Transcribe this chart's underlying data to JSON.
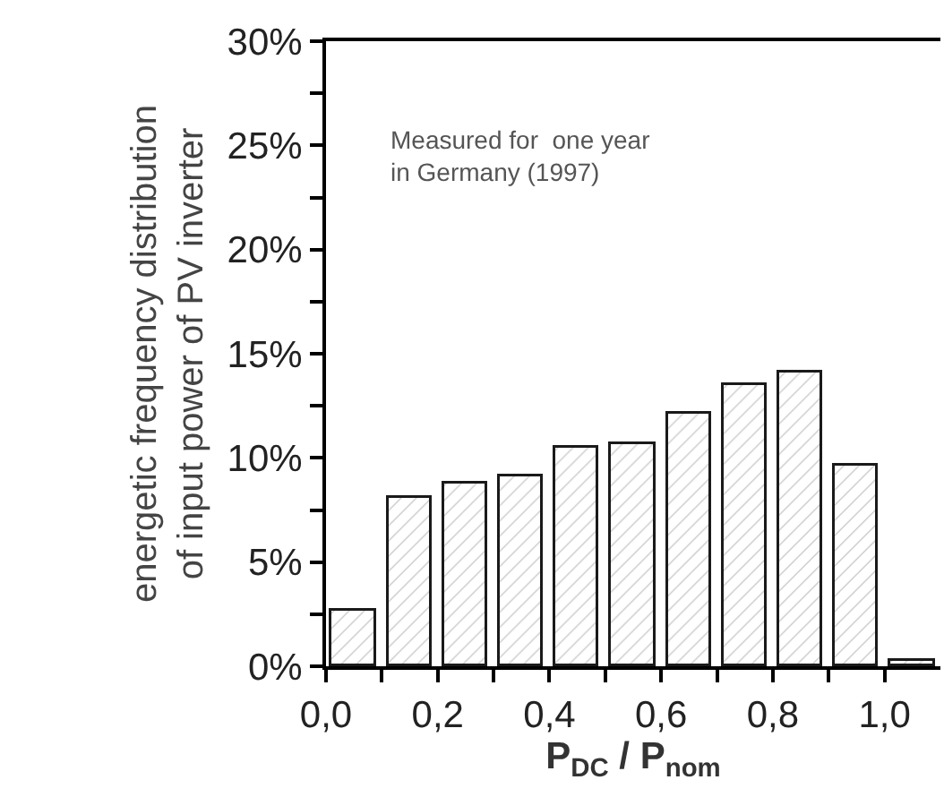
{
  "chart_data": {
    "type": "bar",
    "xlabel": "P$_{DC}$ / P$_{nom}$",
    "ylabel": "energetic frequency distribution\nof input power of PV inverter",
    "annotations": [
      "Measured for  one year\nin Germany (1997)"
    ],
    "x": [
      0.05,
      0.15,
      0.25,
      0.35,
      0.45,
      0.55,
      0.65,
      0.75,
      0.85,
      0.95,
      1.05
    ],
    "values": [
      2.7,
      8.1,
      8.8,
      9.1,
      10.5,
      10.7,
      12.1,
      13.5,
      14.1,
      9.6,
      0.3
    ],
    "color": "#1a1a1a",
    "xlim": [
      0,
      1.1
    ],
    "xticks": [
      {
        "value": 0,
        "label": "0,0"
      },
      {
        "value": 0.1,
        "label": null
      },
      {
        "value": 0.2,
        "label": "0,2"
      },
      {
        "value": 0.3,
        "label": null
      },
      {
        "value": 0.4,
        "label": "0,4"
      },
      {
        "value": 0.5,
        "label": null
      },
      {
        "value": 0.6,
        "label": "0,6"
      },
      {
        "value": 0.7,
        "label": null
      },
      {
        "value": 0.8,
        "label": "0,8"
      },
      {
        "value": 0.9,
        "label": null
      },
      {
        "value": 1.0,
        "label": "1,0"
      }
    ],
    "ylim": [
      0,
      30
    ],
    "yticks": [
      {
        "value": 0,
        "label": "0%"
      },
      {
        "value": 2.5,
        "label": null
      },
      {
        "value": 5,
        "label": "5%"
      },
      {
        "value": 7.5,
        "label": null
      },
      {
        "value": 10,
        "label": "10%"
      },
      {
        "value": 12.5,
        "label": null
      },
      {
        "value": 15,
        "label": "15%"
      },
      {
        "value": 17.5,
        "label": null
      },
      {
        "value": 20,
        "label": "20%"
      },
      {
        "value": 22.5,
        "label": null
      },
      {
        "value": 25,
        "label": "25%"
      },
      {
        "value": 27.5,
        "label": null
      },
      {
        "value": 30,
        "label": "30%"
      }
    ]
  }
}
